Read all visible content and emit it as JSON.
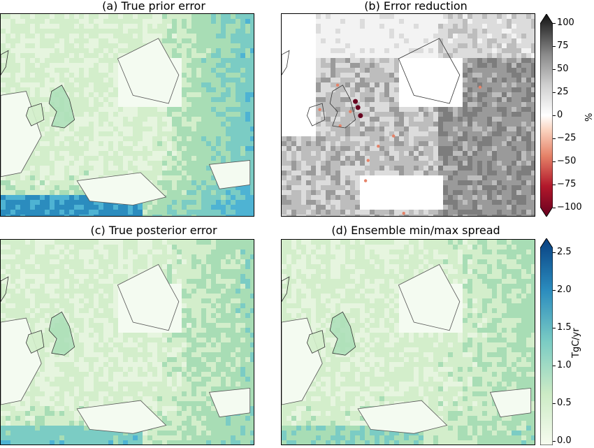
{
  "panels": [
    {
      "id": "a",
      "title": "(a) True prior error",
      "kind": "error"
    },
    {
      "id": "b",
      "title": "(b) Error reduction",
      "kind": "reduction"
    },
    {
      "id": "c",
      "title": "(c) True posterior error",
      "kind": "error"
    },
    {
      "id": "d",
      "title": "(d) Ensemble min/max spread",
      "kind": "error"
    }
  ],
  "colorbars": {
    "reduction": {
      "label": "%",
      "ticks": [
        "100",
        "75",
        "50",
        "25",
        "0",
        "−25",
        "−50",
        "−75",
        "−100"
      ],
      "range": [
        -100,
        100
      ],
      "colors": [
        "#67001f",
        "#d6604d",
        "#f4a582",
        "#ffffff",
        "#bdbdbd",
        "#737373",
        "#000000"
      ]
    },
    "error": {
      "label": "TgC/yr",
      "ticks": [
        "2.5",
        "2.0",
        "1.5",
        "1.0",
        "0.5",
        "0.0"
      ],
      "range": [
        0,
        2.5
      ],
      "colors": [
        "#f7fcf0",
        "#ccebc5",
        "#7bccc4",
        "#2b8cbe",
        "#084081"
      ]
    }
  }
}
